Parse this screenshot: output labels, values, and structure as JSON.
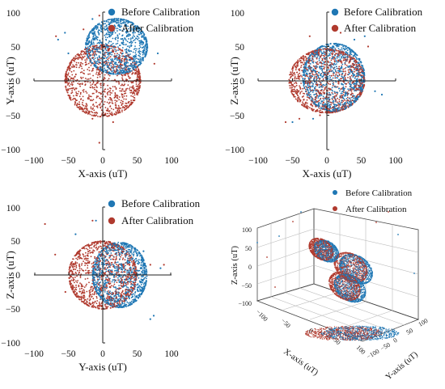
{
  "colors": {
    "before": "#1f77b4",
    "after": "#b03a2e"
  },
  "legend": [
    "Before Calibration",
    "After Calibration"
  ],
  "chart_data": [
    {
      "type": "scatter",
      "projection": "2d",
      "xlabel": "X-axis (uT)",
      "ylabel": "Y-axis (uT)",
      "xlim": [
        -100,
        100
      ],
      "ylim": [
        -100,
        100
      ],
      "xticks": [
        "−100",
        "−50",
        "0",
        "50",
        "100"
      ],
      "yticks": [
        "100",
        "50",
        "0",
        "−50",
        "−100"
      ],
      "series": [
        {
          "name": "Before Calibration",
          "center": [
            20,
            50
          ],
          "radius": 45,
          "aspect_y": 0.9,
          "outliers": [
            [
              -55,
              70
            ],
            [
              -15,
              90
            ],
            [
              60,
              45
            ],
            [
              80,
              40
            ],
            [
              -65,
              60
            ],
            [
              -50,
              40
            ]
          ]
        },
        {
          "name": "After Calibration",
          "center": [
            0,
            0
          ],
          "radius": 55,
          "aspect_y": 0.95,
          "outliers": [
            [
              -68,
              65
            ],
            [
              -5,
              95
            ],
            [
              -28,
              75
            ],
            [
              75,
              25
            ],
            [
              -15,
              -55
            ],
            [
              15,
              -60
            ],
            [
              -5,
              -90
            ],
            [
              -20,
              40
            ]
          ]
        }
      ],
      "grid": false,
      "legend_position": "top-right"
    },
    {
      "type": "scatter",
      "projection": "2d",
      "xlabel": "X-axis (uT)",
      "ylabel": "Z-axis (uT)",
      "xlim": [
        -100,
        100
      ],
      "ylim": [
        -100,
        100
      ],
      "xticks": [
        "−100",
        "−50",
        "0",
        "50",
        "100"
      ],
      "yticks": [
        "100",
        "50",
        "0",
        "−50",
        "−100"
      ],
      "series": [
        {
          "name": "Before Calibration",
          "center": [
            10,
            5
          ],
          "radius": 45,
          "aspect_y": 1.1,
          "outliers": [
            [
              40,
              60
            ],
            [
              55,
              65
            ],
            [
              -50,
              -60
            ],
            [
              -20,
              -55
            ],
            [
              80,
              -20
            ],
            [
              70,
              -15
            ]
          ]
        },
        {
          "name": "After Calibration",
          "center": [
            0,
            0
          ],
          "radius": 55,
          "aspect_y": 0.85,
          "outliers": [
            [
              -60,
              -60
            ],
            [
              -40,
              -55
            ],
            [
              -10,
              -50
            ],
            [
              20,
              70
            ],
            [
              -25,
              65
            ],
            [
              60,
              50
            ]
          ]
        }
      ],
      "grid": false,
      "legend_position": "top-right"
    },
    {
      "type": "scatter",
      "projection": "2d",
      "xlabel": "Y-axis (uT)",
      "ylabel": "Z-axis (uT)",
      "xlim": [
        -100,
        100
      ],
      "ylim": [
        -100,
        100
      ],
      "xticks": [
        "−100",
        "−50",
        "0",
        "50",
        "100"
      ],
      "yticks": [
        "100",
        "50",
        "0",
        "−50",
        "−100"
      ],
      "series": [
        {
          "name": "Before Calibration",
          "center": [
            25,
            0
          ],
          "radius": 40,
          "aspect_y": 1.2,
          "outliers": [
            [
              -40,
              60
            ],
            [
              -10,
              80
            ],
            [
              60,
              35
            ],
            [
              85,
              10
            ],
            [
              70,
              -65
            ],
            [
              75,
              -60
            ]
          ]
        },
        {
          "name": "After Calibration",
          "center": [
            0,
            0
          ],
          "radius": 50,
          "aspect_y": 1.0,
          "outliers": [
            [
              -85,
              75
            ],
            [
              -70,
              30
            ],
            [
              -55,
              -25
            ],
            [
              -15,
              80
            ],
            [
              90,
              15
            ],
            [
              70,
              15
            ]
          ]
        }
      ],
      "grid": false,
      "legend_position": "top-right"
    },
    {
      "type": "scatter",
      "projection": "3d",
      "xlabel": "X-axis (uT)",
      "ylabel": "Y-axis (uT)",
      "zlabel": "Z-axis (uT)",
      "xlim": [
        -100,
        100
      ],
      "ylim": [
        -100,
        100
      ],
      "zlim": [
        -100,
        100
      ],
      "xticks": [
        "−100",
        "−50",
        "0",
        "50",
        "100"
      ],
      "yticks": [
        "100",
        "50",
        "0",
        "−50",
        "−100"
      ],
      "zticks": [
        "100",
        "50",
        "0",
        "−50",
        "−100"
      ],
      "series": [
        {
          "name": "Before Calibration",
          "center": [
            20,
            50,
            5
          ],
          "radius": 45
        },
        {
          "name": "After Calibration",
          "center": [
            0,
            0,
            0
          ],
          "radius": 55
        }
      ],
      "grid": true,
      "legend_position": "top"
    }
  ]
}
